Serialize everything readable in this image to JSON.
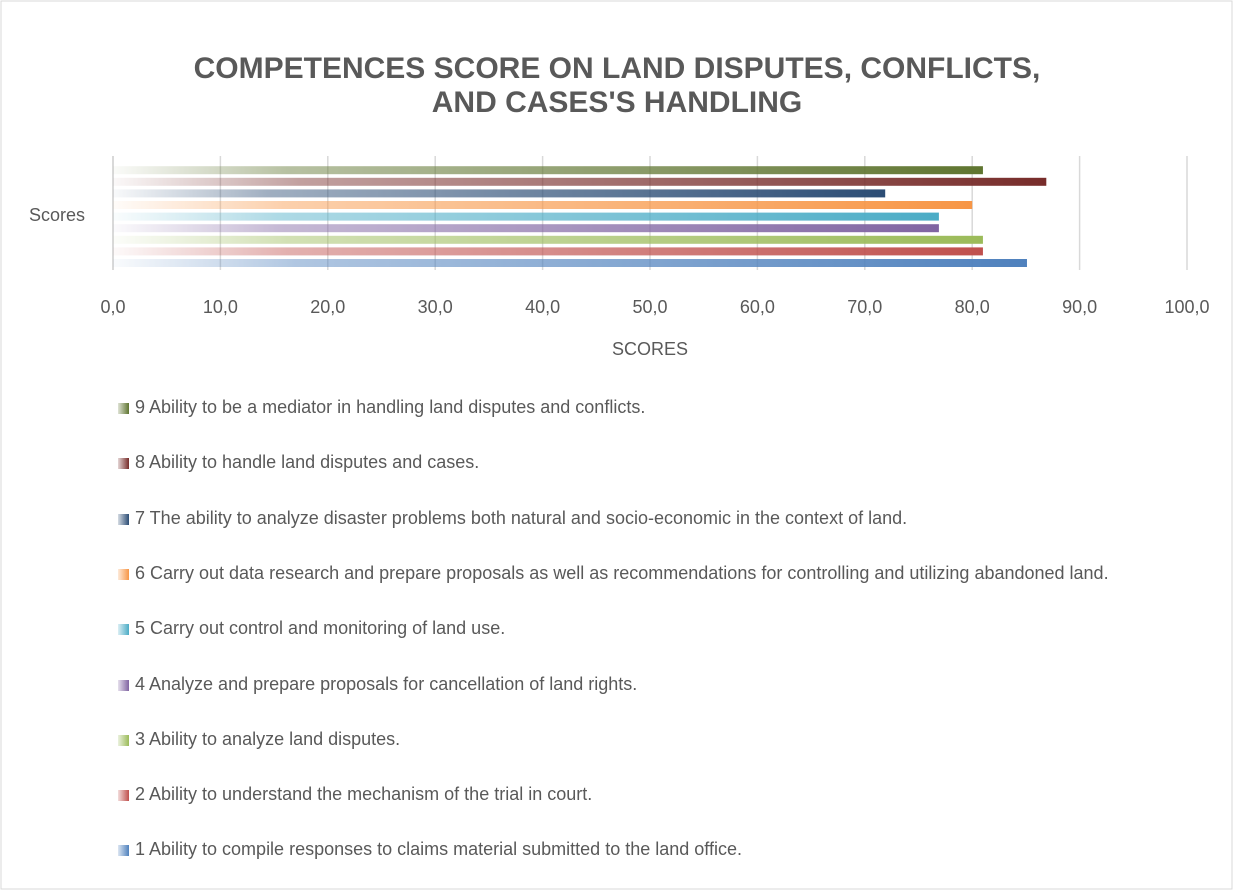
{
  "chart_data": {
    "type": "bar",
    "orientation": "horizontal",
    "title": "COMPETENCES SCORE ON LAND DISPUTES, CONFLICTS, AND CASES'S HANDLING",
    "categories": [
      "Scores"
    ],
    "x_label": "SCORES",
    "xlim": [
      0,
      100
    ],
    "xticks": [
      {
        "value": 0,
        "label": "0,0"
      },
      {
        "value": 10,
        "label": "10,0"
      },
      {
        "value": 20,
        "label": "20,0"
      },
      {
        "value": 30,
        "label": "30,0"
      },
      {
        "value": 40,
        "label": "40,0"
      },
      {
        "value": 50,
        "label": "50,0"
      },
      {
        "value": 60,
        "label": "60,0"
      },
      {
        "value": 70,
        "label": "70,0"
      },
      {
        "value": 80,
        "label": "80,0"
      },
      {
        "value": 90,
        "label": "90,0"
      },
      {
        "value": 100,
        "label": "100,0"
      }
    ],
    "grid": true,
    "legend": "bottom",
    "series": [
      {
        "name": "1 Ability to compile responses to claims material submitted to the land office.",
        "color": "#4f81bd",
        "values": [
          85.1
        ]
      },
      {
        "name": "2 Ability to understand the mechanism of the trial in court.",
        "color": "#c0504d",
        "values": [
          81.0
        ]
      },
      {
        "name": "3 Ability to analyze land disputes.",
        "color": "#9bbb59",
        "values": [
          81.0
        ]
      },
      {
        "name": "4 Analyze and prepare proposals for cancellation of land rights.",
        "color": "#8064a2",
        "values": [
          76.9
        ]
      },
      {
        "name": "5 Carry out control and monitoring of land use.",
        "color": "#4bacc6",
        "values": [
          76.9
        ]
      },
      {
        "name": "6 Carry out data research and prepare proposals as well as recommendations for controlling and utilizing abandoned land.",
        "color": "#f79646",
        "values": [
          80.0
        ]
      },
      {
        "name": "7 The ability to analyze disaster problems both natural and socio-economic in the context of land.",
        "color": "#2c4d75",
        "values": [
          71.9
        ]
      },
      {
        "name": "8 Ability to handle land disputes and cases.",
        "color": "#772c2a",
        "values": [
          86.9
        ]
      },
      {
        "name": "9 Ability to be a mediator in handling land disputes and conflicts.",
        "color": "#5f7530",
        "values": [
          81.0
        ]
      }
    ]
  }
}
